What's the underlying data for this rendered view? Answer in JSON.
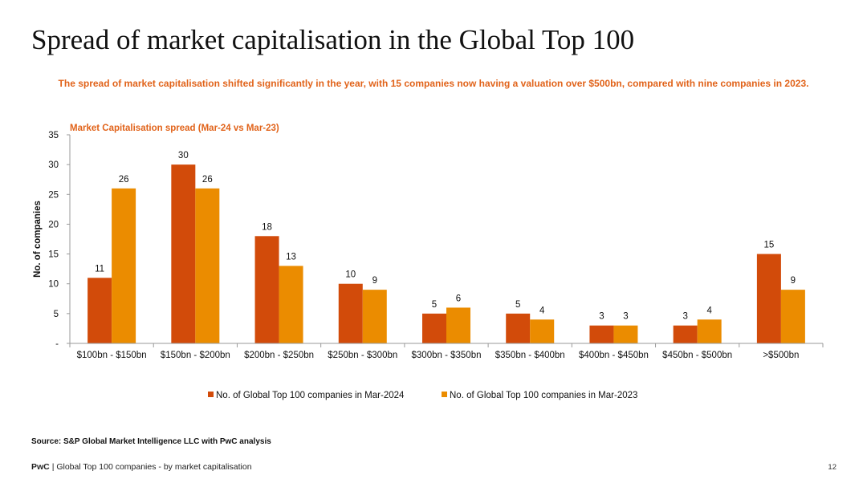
{
  "slide": {
    "title": "Spread of market capitalisation in the Global Top 100",
    "subtitle": "The spread of market capitalisation shifted significantly in the year, with 15 companies now having a valuation over $500bn, compared with nine companies in 2023.",
    "source": "Source: S&P Global Market Intelligence LLC with PwC analysis",
    "footer_brand": "PwC",
    "footer_separator": "|",
    "footer_text": "Global Top 100 companies - by market capitalisation",
    "page_number": "12"
  },
  "chart_data": {
    "type": "bar",
    "title": "Market Capitalisation spread (Mar-24 vs Mar-23)",
    "xlabel": "",
    "ylabel": "No. of companies",
    "ylim": [
      0,
      35
    ],
    "yticks": [
      0,
      5,
      10,
      15,
      20,
      25,
      30,
      35
    ],
    "ytick_labels": [
      "-",
      "5",
      "10",
      "15",
      "20",
      "25",
      "30",
      "35"
    ],
    "categories": [
      "$100bn - $150bn",
      "$150bn - $200bn",
      "$200bn - $250bn",
      "$250bn - $300bn",
      "$300bn - $350bn",
      "$350bn - $400bn",
      "$400bn - $450bn",
      "$450bn - $500bn",
      ">$500bn"
    ],
    "series": [
      {
        "name": "No. of Global Top 100 companies in Mar-2024",
        "color": "#d24b0a",
        "values": [
          11,
          30,
          18,
          10,
          5,
          5,
          3,
          3,
          15
        ]
      },
      {
        "name": "No. of Global Top 100 companies in Mar-2023",
        "color": "#eb8c00",
        "values": [
          26,
          26,
          13,
          9,
          6,
          4,
          3,
          4,
          9
        ]
      }
    ],
    "legend_position": "bottom",
    "grid": false
  }
}
